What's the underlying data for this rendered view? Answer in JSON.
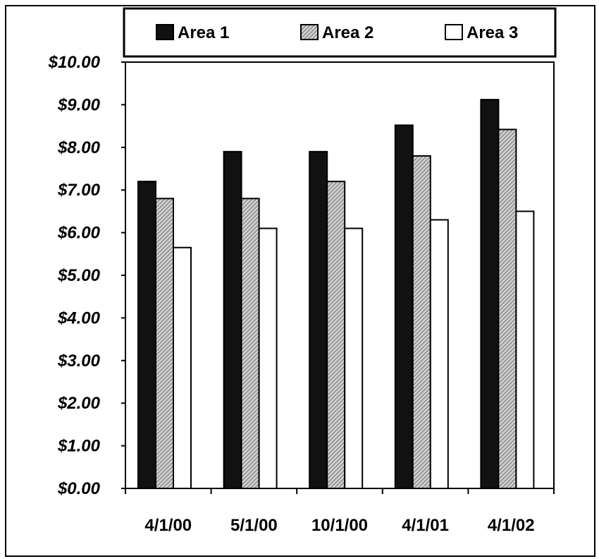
{
  "chart_data": {
    "type": "bar",
    "categories": [
      "4/1/00",
      "5/1/00",
      "10/1/00",
      "4/1/01",
      "4/1/02"
    ],
    "series": [
      {
        "name": "Area 1",
        "values": [
          7.2,
          7.9,
          7.9,
          8.52,
          9.12
        ],
        "fill": "black"
      },
      {
        "name": "Area 2",
        "values": [
          6.8,
          6.8,
          7.2,
          7.8,
          8.42
        ],
        "fill": "hatched-gray"
      },
      {
        "name": "Area 3",
        "values": [
          5.65,
          6.1,
          6.1,
          6.3,
          6.5
        ],
        "fill": "white"
      }
    ],
    "ylim": [
      0,
      10
    ],
    "yticks": [
      "$0.00",
      "$1.00",
      "$2.00",
      "$3.00",
      "$4.00",
      "$5.00",
      "$6.00",
      "$7.00",
      "$8.00",
      "$9.00",
      "$10.00"
    ],
    "grid": false,
    "legend_position": "top"
  },
  "colors": {
    "area1": "#111111",
    "area2_hatch": "#8a8a8a",
    "area3": "#ffffff",
    "stroke": "#000000"
  }
}
